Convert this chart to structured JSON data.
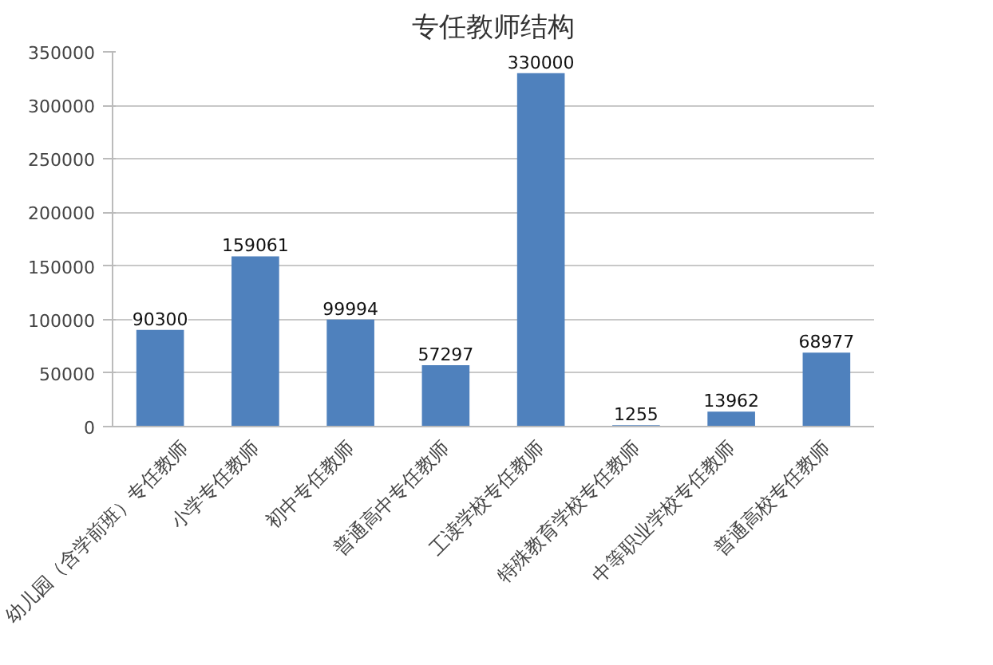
{
  "chart_data": {
    "type": "bar",
    "title": "专任教师结构",
    "categories": [
      "幼儿园（含学前班）专任教师",
      "小学专任教师",
      "初中专任教师",
      "普通高中专任教师",
      "工读学校专任教师",
      "特殊教育学校专任教师",
      "中等职业学校专任教师",
      "普通高校专任教师"
    ],
    "values": [
      90300,
      159061,
      99994,
      57297,
      330000,
      1255,
      13962,
      68977
    ],
    "color": "#4f81bd",
    "ylim": [
      0,
      350000
    ],
    "yticks": [
      0,
      50000,
      100000,
      150000,
      200000,
      250000,
      300000,
      350000
    ],
    "grid": "y",
    "data_labels": true
  }
}
